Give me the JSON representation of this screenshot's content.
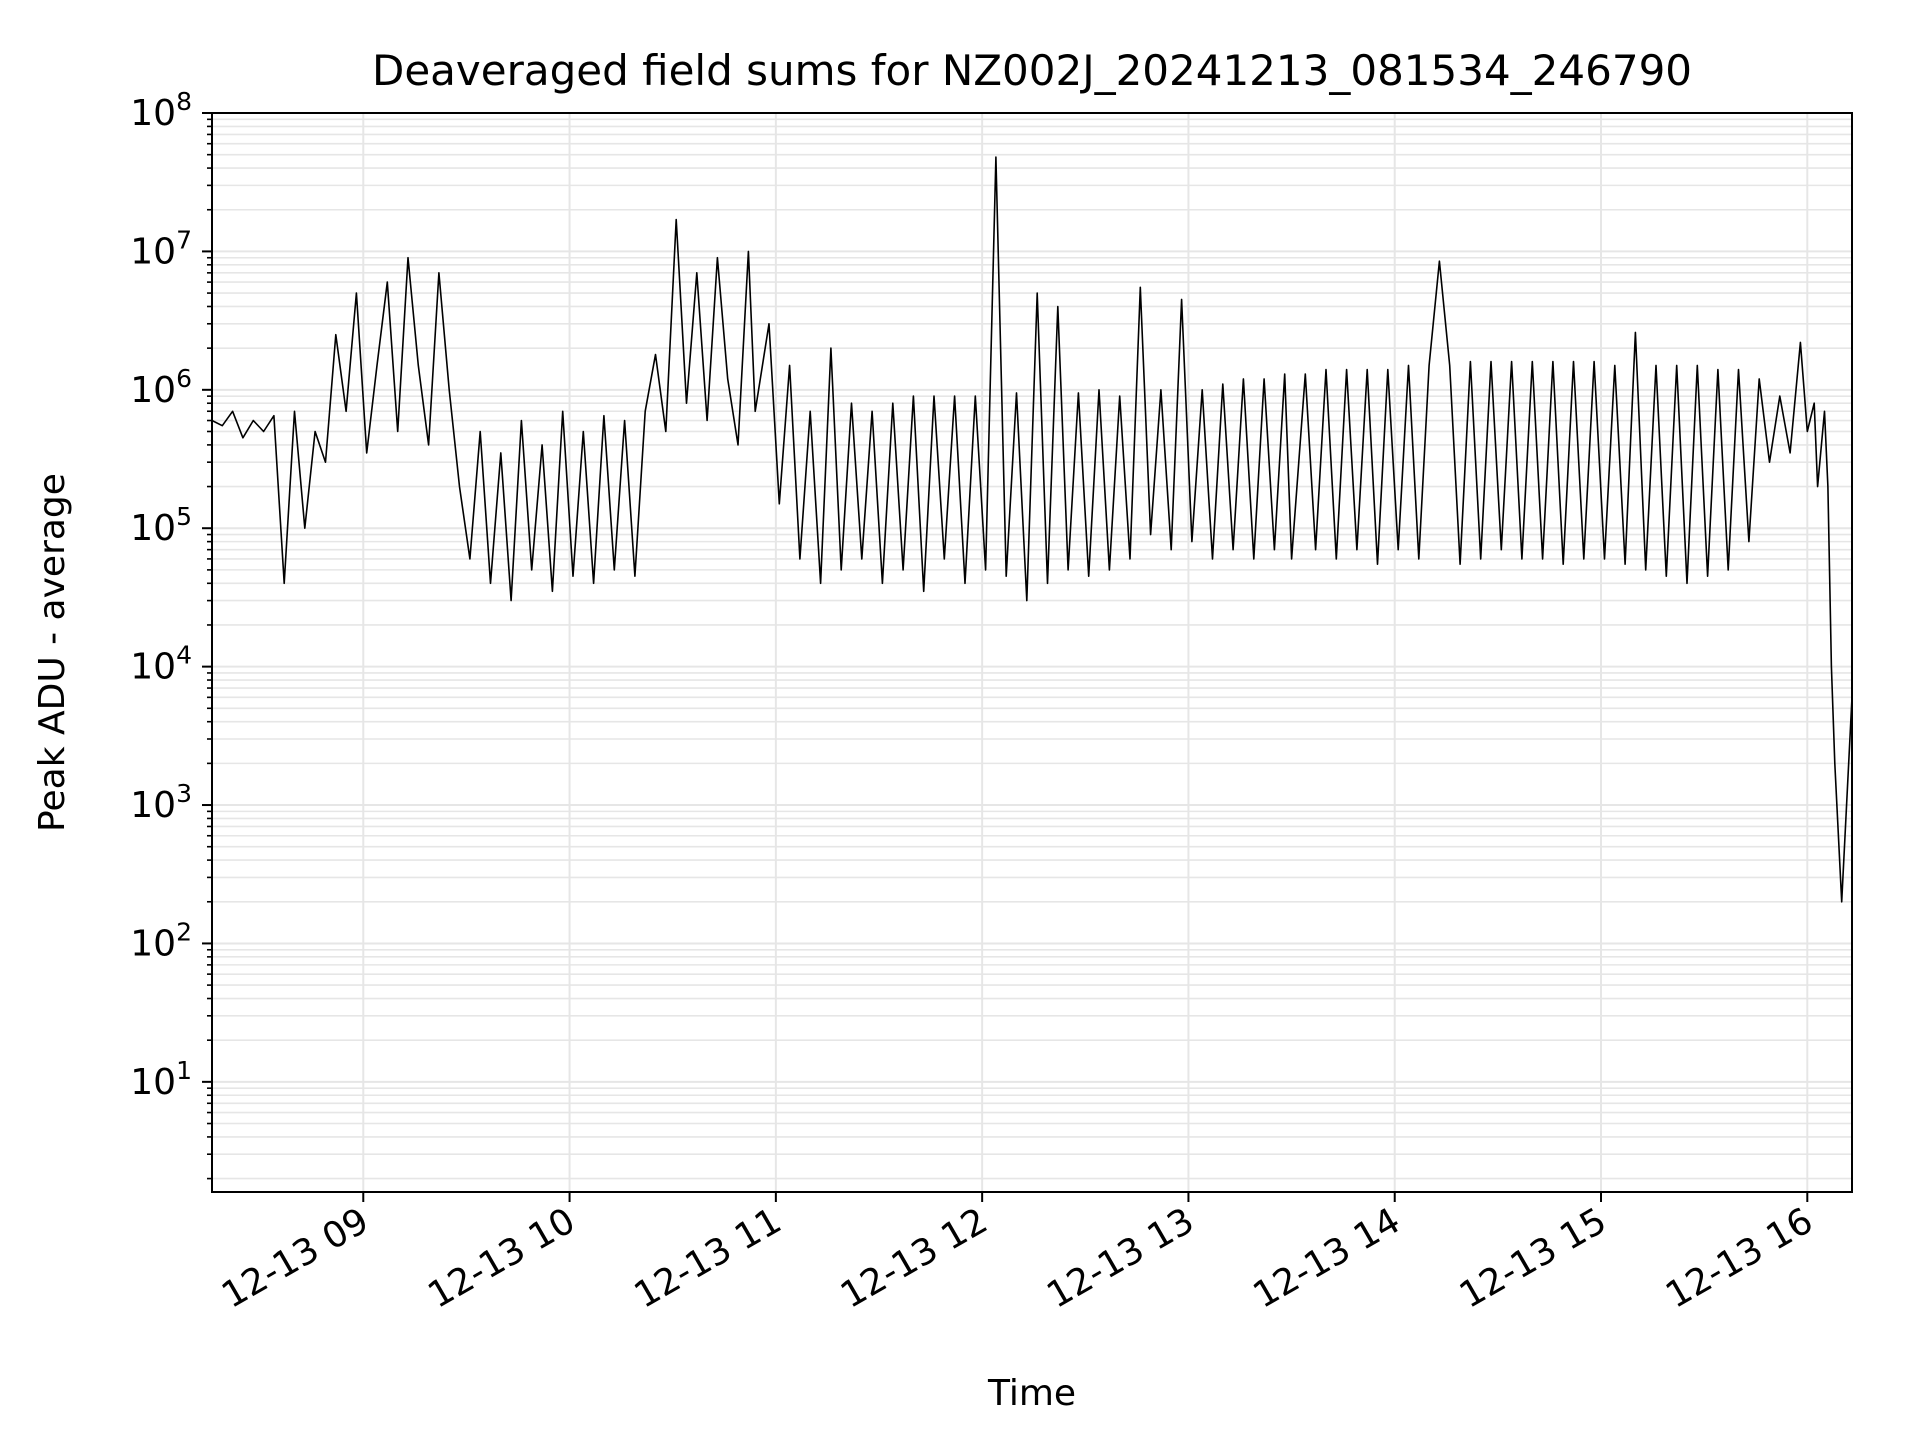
{
  "chart_data": {
    "type": "line",
    "title": "Deaveraged field sums for NZ002J_20241213_081534_246790",
    "xlabel": "Time",
    "ylabel": "Peak ADU - average",
    "xlim": [
      "12-13 08:16",
      "12-13 16:13"
    ],
    "ylim": [
      1.6,
      100000000
    ],
    "yscale": "log",
    "grid": true,
    "colors": {
      "line": "#000000",
      "grid": "#e6e6e6",
      "axes": "#000000"
    },
    "x_ticks": [
      {
        "label": "12-13 09",
        "hour": 9
      },
      {
        "label": "12-13 10",
        "hour": 10
      },
      {
        "label": "12-13 11",
        "hour": 11
      },
      {
        "label": "12-13 12",
        "hour": 12
      },
      {
        "label": "12-13 13",
        "hour": 13
      },
      {
        "label": "12-13 14",
        "hour": 14
      },
      {
        "label": "12-13 15",
        "hour": 15
      },
      {
        "label": "12-13 16",
        "hour": 16
      }
    ],
    "y_ticks": [
      {
        "base": "10",
        "exp": "1",
        "value": 10
      },
      {
        "base": "10",
        "exp": "2",
        "value": 100
      },
      {
        "base": "10",
        "exp": "3",
        "value": 1000
      },
      {
        "base": "10",
        "exp": "4",
        "value": 10000
      },
      {
        "base": "10",
        "exp": "5",
        "value": 100000
      },
      {
        "base": "10",
        "exp": "6",
        "value": 1000000
      },
      {
        "base": "10",
        "exp": "7",
        "value": 10000000
      },
      {
        "base": "10",
        "exp": "8",
        "value": 100000000
      }
    ],
    "series": [
      {
        "style": "line",
        "color": "#000000",
        "x": [
          "12-13 08:16",
          "12-13 08:19",
          "12-13 08:22",
          "12-13 08:25",
          "12-13 08:28",
          "12-13 08:31",
          "12-13 08:34",
          "12-13 08:37",
          "12-13 08:40",
          "12-13 08:43",
          "12-13 08:46",
          "12-13 08:49",
          "12-13 08:52",
          "12-13 08:55",
          "12-13 08:58",
          "12-13 09:01",
          "12-13 09:04",
          "12-13 09:07",
          "12-13 09:10",
          "12-13 09:13",
          "12-13 09:16",
          "12-13 09:19",
          "12-13 09:22",
          "12-13 09:25",
          "12-13 09:28",
          "12-13 09:31",
          "12-13 09:34",
          "12-13 09:37",
          "12-13 09:40",
          "12-13 09:43",
          "12-13 09:46",
          "12-13 09:49",
          "12-13 09:52",
          "12-13 09:55",
          "12-13 09:58",
          "12-13 10:01",
          "12-13 10:04",
          "12-13 10:07",
          "12-13 10:10",
          "12-13 10:13",
          "12-13 10:16",
          "12-13 10:19",
          "12-13 10:22",
          "12-13 10:25",
          "12-13 10:28",
          "12-13 10:31",
          "12-13 10:34",
          "12-13 10:37",
          "12-13 10:40",
          "12-13 10:43",
          "12-13 10:46",
          "12-13 10:49",
          "12-13 10:52",
          "12-13 10:54",
          "12-13 10:58",
          "12-13 11:01",
          "12-13 11:04",
          "12-13 11:07",
          "12-13 11:10",
          "12-13 11:13",
          "12-13 11:16",
          "12-13 11:19",
          "12-13 11:22",
          "12-13 11:25",
          "12-13 11:28",
          "12-13 11:31",
          "12-13 11:34",
          "12-13 11:37",
          "12-13 11:40",
          "12-13 11:43",
          "12-13 11:46",
          "12-13 11:49",
          "12-13 11:52",
          "12-13 11:55",
          "12-13 11:58",
          "12-13 12:01",
          "12-13 12:04",
          "12-13 12:07",
          "12-13 12:10",
          "12-13 12:13",
          "12-13 12:16",
          "12-13 12:19",
          "12-13 12:22",
          "12-13 12:25",
          "12-13 12:28",
          "12-13 12:31",
          "12-13 12:34",
          "12-13 12:37",
          "12-13 12:40",
          "12-13 12:43",
          "12-13 12:46",
          "12-13 12:49",
          "12-13 12:52",
          "12-13 12:55",
          "12-13 12:58",
          "12-13 13:01",
          "12-13 13:04",
          "12-13 13:07",
          "12-13 13:10",
          "12-13 13:13",
          "12-13 13:16",
          "12-13 13:19",
          "12-13 13:22",
          "12-13 13:25",
          "12-13 13:28",
          "12-13 13:30",
          "12-13 13:34",
          "12-13 13:37",
          "12-13 13:40",
          "12-13 13:43",
          "12-13 13:46",
          "12-13 13:49",
          "12-13 13:52",
          "12-13 13:55",
          "12-13 13:58",
          "12-13 14:01",
          "12-13 14:04",
          "12-13 14:07",
          "12-13 14:10",
          "12-13 14:13",
          "12-13 14:16",
          "12-13 14:19",
          "12-13 14:22",
          "12-13 14:25",
          "12-13 14:28",
          "12-13 14:31",
          "12-13 14:34",
          "12-13 14:37",
          "12-13 14:40",
          "12-13 14:43",
          "12-13 14:46",
          "12-13 14:49",
          "12-13 14:52",
          "12-13 14:55",
          "12-13 14:58",
          "12-13 15:01",
          "12-13 15:04",
          "12-13 15:07",
          "12-13 15:10",
          "12-13 15:13",
          "12-13 15:16",
          "12-13 15:19",
          "12-13 15:22",
          "12-13 15:25",
          "12-13 15:28",
          "12-13 15:31",
          "12-13 15:34",
          "12-13 15:37",
          "12-13 15:40",
          "12-13 15:43",
          "12-13 15:46",
          "12-13 15:49",
          "12-13 15:52",
          "12-13 15:55",
          "12-13 15:58",
          "12-13 16:00",
          "12-13 16:02",
          "12-13 16:03",
          "12-13 16:05",
          "12-13 16:06",
          "12-13 16:07",
          "12-13 16:08",
          "12-13 16:10",
          "12-13 16:13"
        ],
        "y": [
          600000,
          550000,
          700000,
          450000,
          600000,
          500000,
          650000,
          40000,
          700000,
          100000,
          500000,
          300000,
          2500000,
          700000,
          5000000,
          350000,
          1500000,
          6000000,
          500000,
          9000000,
          1500000,
          400000,
          7000000,
          1000000,
          200000,
          60000,
          500000,
          40000,
          350000,
          30000,
          600000,
          50000,
          400000,
          35000,
          700000,
          45000,
          500000,
          40000,
          650000,
          50000,
          600000,
          45000,
          700000,
          1800000,
          500000,
          17000000,
          800000,
          7000000,
          600000,
          9000000,
          1200000,
          400000,
          10000000,
          700000,
          3000000,
          150000,
          1500000,
          60000,
          700000,
          40000,
          2000000,
          50000,
          800000,
          60000,
          700000,
          40000,
          800000,
          50000,
          900000,
          35000,
          900000,
          60000,
          900000,
          40000,
          900000,
          50000,
          48000000,
          45000,
          950000,
          30000,
          5000000,
          40000,
          4000000,
          50000,
          950000,
          45000,
          1000000,
          50000,
          900000,
          60000,
          5500000,
          90000,
          1000000,
          70000,
          4500000,
          80000,
          1000000,
          60000,
          1100000,
          70000,
          1200000,
          60000,
          1200000,
          70000,
          1300000,
          60000,
          1300000,
          70000,
          1400000,
          60000,
          1400000,
          70000,
          1400000,
          55000,
          1400000,
          70000,
          1500000,
          60000,
          1500000,
          8500000,
          1500000,
          55000,
          1600000,
          60000,
          1600000,
          70000,
          1600000,
          60000,
          1600000,
          60000,
          1600000,
          55000,
          1600000,
          60000,
          1600000,
          60000,
          1500000,
          55000,
          2600000,
          50000,
          1500000,
          45000,
          1500000,
          40000,
          1500000,
          45000,
          1400000,
          50000,
          1400000,
          80000,
          1200000,
          300000,
          900000,
          350000,
          2200000,
          500000,
          800000,
          200000,
          700000,
          200000,
          10000,
          2000,
          200,
          6000
        ]
      }
    ]
  }
}
